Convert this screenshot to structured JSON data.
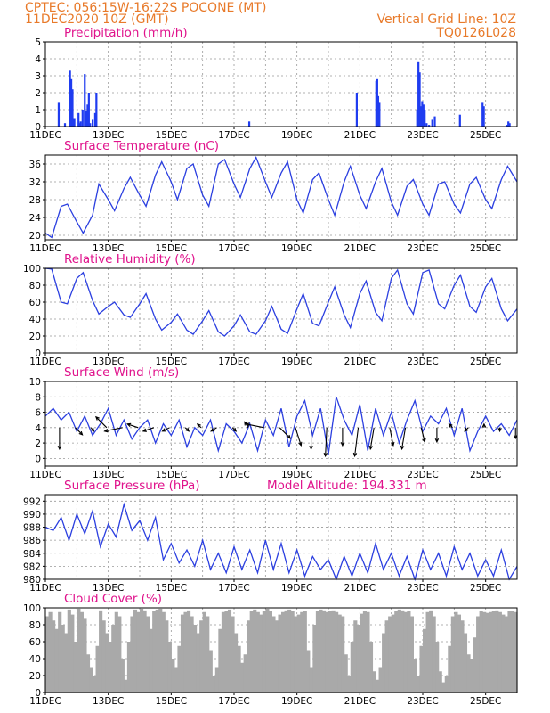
{
  "header": {
    "left_line1": "CPTEC:    056:15W-16:22S   POCONE (MT)",
    "left_line2": "11DEC2020  10Z (GMT)",
    "right_line1": "Vertical Grid Line: 10Z",
    "right_line2": "TQ0126L028"
  },
  "x_labels": [
    "11DEC",
    "13DEC",
    "15DEC",
    "17DEC",
    "19DEC",
    "21DEC",
    "23DEC",
    "25DEC"
  ],
  "x_labels_days": [
    0,
    2,
    4,
    6,
    8,
    10,
    12,
    14
  ],
  "x_range_days": [
    0,
    15
  ],
  "colors": {
    "line": "#2b3fe0",
    "bar": "#1f3cf0",
    "cloud": "#a9a9a9",
    "header": "#e87a2a",
    "title": "#e0138c"
  },
  "chart_data": [
    {
      "type": "bar",
      "title": "Precipitation (mm/h)",
      "ylim": [
        0,
        5
      ],
      "yticks": [
        0,
        1,
        2,
        3,
        4,
        5
      ],
      "x_unit": "days since 11DEC 10Z",
      "x": [
        0.42,
        0.62,
        0.78,
        0.82,
        0.86,
        0.92,
        1.05,
        1.08,
        1.12,
        1.18,
        1.25,
        1.3,
        1.34,
        1.38,
        1.42,
        1.5,
        1.58,
        1.62,
        6.48,
        9.9,
        10.52,
        10.55,
        10.58,
        10.62,
        11.82,
        11.86,
        11.9,
        11.94,
        11.98,
        12.02,
        12.06,
        12.12,
        12.2,
        12.3,
        12.38,
        13.18,
        13.9,
        13.94,
        14.68,
        14.72,
        14.76
      ],
      "values": [
        1.4,
        0.2,
        3.3,
        2.8,
        2.2,
        0.5,
        0.8,
        0.2,
        0.3,
        1.0,
        3.1,
        0.9,
        1.3,
        2.0,
        0.2,
        0.4,
        0.8,
        2.0,
        0.3,
        2.0,
        2.7,
        2.8,
        1.8,
        1.4,
        1.0,
        3.8,
        3.2,
        1.2,
        1.5,
        1.3,
        1.0,
        0.2,
        0.1,
        0.4,
        0.6,
        0.7,
        1.4,
        1.2,
        0.1,
        0.3,
        0.2
      ]
    },
    {
      "type": "line",
      "title": "Surface Temperature (nC)",
      "ylim": [
        19,
        38
      ],
      "yticks": [
        20,
        24,
        28,
        32,
        36
      ],
      "x_unit": "days since 11DEC 10Z",
      "x": [
        0.0,
        0.2,
        0.5,
        0.7,
        1.0,
        1.2,
        1.5,
        1.7,
        2.0,
        2.2,
        2.5,
        2.7,
        3.0,
        3.2,
        3.5,
        3.7,
        4.0,
        4.2,
        4.5,
        4.7,
        5.0,
        5.2,
        5.5,
        5.7,
        6.0,
        6.2,
        6.5,
        6.7,
        7.0,
        7.2,
        7.5,
        7.7,
        8.0,
        8.2,
        8.5,
        8.7,
        9.0,
        9.2,
        9.5,
        9.7,
        10.0,
        10.2,
        10.5,
        10.7,
        11.0,
        11.2,
        11.5,
        11.7,
        12.0,
        12.2,
        12.5,
        12.7,
        13.0,
        13.2,
        13.5,
        13.7,
        14.0,
        14.2,
        14.5,
        14.7,
        15.0
      ],
      "y": [
        20.5,
        19.5,
        26.5,
        27.0,
        23.0,
        20.5,
        24.5,
        31.5,
        28.0,
        25.5,
        30.5,
        33.0,
        29.0,
        26.5,
        33.5,
        36.5,
        32.0,
        28.0,
        35.0,
        36.0,
        29.0,
        26.5,
        36.0,
        37.0,
        31.5,
        28.5,
        35.0,
        37.5,
        32.0,
        28.5,
        34.0,
        36.5,
        28.0,
        25.0,
        32.5,
        34.0,
        28.0,
        24.5,
        32.0,
        35.5,
        29.0,
        26.0,
        32.0,
        35.0,
        27.5,
        24.5,
        31.0,
        32.5,
        27.0,
        24.5,
        31.5,
        32.0,
        27.0,
        25.0,
        31.5,
        33.0,
        28.0,
        26.0,
        32.5,
        35.5,
        32.0
      ]
    },
    {
      "type": "line",
      "title": "Relative Humidity (%)",
      "ylim": [
        0,
        100
      ],
      "yticks": [
        0,
        20,
        40,
        60,
        80,
        100
      ],
      "x_unit": "days since 11DEC 10Z",
      "x": [
        0.0,
        0.2,
        0.5,
        0.7,
        1.0,
        1.2,
        1.5,
        1.7,
        2.0,
        2.2,
        2.5,
        2.7,
        3.0,
        3.2,
        3.5,
        3.7,
        4.0,
        4.2,
        4.5,
        4.7,
        5.0,
        5.2,
        5.5,
        5.7,
        6.0,
        6.2,
        6.5,
        6.7,
        7.0,
        7.2,
        7.5,
        7.7,
        8.0,
        8.2,
        8.5,
        8.7,
        9.0,
        9.2,
        9.5,
        9.7,
        10.0,
        10.2,
        10.5,
        10.7,
        11.0,
        11.2,
        11.5,
        11.7,
        12.0,
        12.2,
        12.5,
        12.7,
        13.0,
        13.2,
        13.5,
        13.7,
        14.0,
        14.2,
        14.5,
        14.7,
        15.0
      ],
      "y": [
        100,
        99,
        60,
        58,
        88,
        95,
        62,
        46,
        55,
        60,
        45,
        42,
        58,
        70,
        40,
        27,
        36,
        46,
        27,
        22,
        38,
        50,
        25,
        20,
        32,
        45,
        25,
        22,
        38,
        55,
        28,
        23,
        52,
        70,
        35,
        32,
        60,
        78,
        45,
        30,
        70,
        85,
        48,
        38,
        88,
        98,
        58,
        46,
        95,
        98,
        58,
        52,
        80,
        92,
        55,
        48,
        78,
        88,
        52,
        38,
        52
      ]
    },
    {
      "type": "line",
      "title": "Surface Wind (m/s)",
      "ylim": [
        -1,
        10
      ],
      "yticks": [
        0,
        2,
        4,
        6,
        8,
        10
      ],
      "x_unit": "days since 11DEC 10Z",
      "x": [
        0.0,
        0.25,
        0.5,
        0.75,
        1.0,
        1.25,
        1.5,
        1.75,
        2.0,
        2.25,
        2.5,
        2.75,
        3.0,
        3.25,
        3.5,
        3.75,
        4.0,
        4.25,
        4.5,
        4.75,
        5.0,
        5.25,
        5.5,
        5.75,
        6.0,
        6.25,
        6.5,
        6.75,
        7.0,
        7.25,
        7.5,
        7.75,
        8.0,
        8.25,
        8.5,
        8.75,
        9.0,
        9.25,
        9.5,
        9.75,
        10.0,
        10.25,
        10.5,
        10.75,
        11.0,
        11.25,
        11.5,
        11.75,
        12.0,
        12.25,
        12.5,
        12.75,
        13.0,
        13.25,
        13.5,
        13.75,
        14.0,
        14.25,
        14.5,
        14.75,
        15.0
      ],
      "y": [
        5.5,
        6.5,
        5.0,
        6.0,
        3.5,
        5.5,
        3.0,
        4.5,
        6.5,
        3.0,
        5.0,
        2.5,
        4.0,
        5.0,
        2.0,
        4.5,
        3.0,
        5.0,
        1.5,
        4.0,
        3.0,
        5.0,
        1.0,
        4.5,
        3.5,
        2.0,
        4.5,
        1.0,
        5.0,
        3.0,
        6.5,
        1.5,
        5.5,
        7.5,
        3.0,
        6.5,
        0.5,
        8.0,
        5.0,
        3.0,
        7.0,
        1.0,
        6.5,
        3.0,
        6.0,
        2.0,
        5.0,
        7.5,
        3.5,
        5.5,
        4.5,
        6.5,
        3.0,
        6.5,
        1.0,
        3.5,
        5.5,
        3.5,
        4.5,
        3.0,
        5.0
      ],
      "vectors": {
        "x": [
          0.45,
          0.95,
          1.45,
          1.95,
          2.45,
          2.95,
          3.45,
          3.95,
          4.45,
          4.95,
          5.45,
          5.95,
          6.45,
          6.95,
          7.45,
          7.95,
          8.45,
          8.95,
          9.45,
          9.95,
          10.45,
          10.95,
          11.45,
          11.95,
          12.45,
          12.95,
          13.45,
          13.95,
          14.45,
          14.95
        ],
        "u": [
          0.0,
          1.0,
          0.4,
          -1.5,
          -2.5,
          -1.5,
          -1.5,
          -1.0,
          0.5,
          -0.5,
          -0.8,
          0.5,
          -0.5,
          -2.5,
          1.5,
          0.8,
          0.0,
          -0.2,
          0.0,
          -0.5,
          -0.5,
          0.5,
          -0.5,
          0.5,
          0.0,
          -0.5,
          -0.5,
          0.0,
          0.0,
          0.0
        ],
        "v": [
          -3.0,
          -1.0,
          -0.5,
          1.5,
          -0.5,
          0.5,
          -0.5,
          -0.5,
          -0.5,
          0.5,
          -0.5,
          -0.5,
          0.8,
          0.5,
          -1.5,
          -2.5,
          -3.0,
          -4.0,
          -2.5,
          -4.0,
          -3.0,
          -2.5,
          -3.0,
          -2.0,
          -2.0,
          0.5,
          -0.5,
          0.5,
          -0.5,
          -1.5
        ]
      }
    },
    {
      "type": "line",
      "title": "Surface Pressure (hPa)",
      "annotation": "Model Altitude: 194.331 m",
      "ylim": [
        980,
        993
      ],
      "yticks": [
        980,
        982,
        984,
        986,
        988,
        990,
        992
      ],
      "x_unit": "days since 11DEC 10Z",
      "x": [
        0.0,
        0.25,
        0.5,
        0.75,
        1.0,
        1.25,
        1.5,
        1.75,
        2.0,
        2.25,
        2.5,
        2.75,
        3.0,
        3.25,
        3.5,
        3.75,
        4.0,
        4.25,
        4.5,
        4.75,
        5.0,
        5.25,
        5.5,
        5.75,
        6.0,
        6.25,
        6.5,
        6.75,
        7.0,
        7.25,
        7.5,
        7.75,
        8.0,
        8.25,
        8.5,
        8.75,
        9.0,
        9.25,
        9.5,
        9.75,
        10.0,
        10.25,
        10.5,
        10.75,
        11.0,
        11.25,
        11.5,
        11.75,
        12.0,
        12.25,
        12.5,
        12.75,
        13.0,
        13.25,
        13.5,
        13.75,
        14.0,
        14.25,
        14.5,
        14.75,
        15.0
      ],
      "y": [
        988.0,
        987.5,
        989.5,
        986.0,
        990.0,
        987.0,
        990.5,
        985.0,
        988.5,
        986.5,
        991.5,
        987.5,
        989.0,
        986.0,
        989.5,
        983.0,
        985.5,
        982.5,
        984.5,
        982.0,
        986.0,
        981.5,
        984.0,
        981.0,
        985.0,
        981.5,
        984.5,
        981.0,
        986.0,
        981.5,
        985.5,
        981.0,
        984.5,
        980.5,
        983.5,
        981.5,
        983.0,
        980.0,
        983.5,
        980.5,
        984.0,
        981.0,
        985.5,
        981.5,
        984.0,
        980.5,
        983.5,
        980.0,
        984.5,
        981.5,
        984.0,
        980.5,
        985.0,
        981.5,
        984.0,
        980.5,
        983.0,
        980.5,
        984.5,
        980.0,
        982.0
      ]
    },
    {
      "type": "bar",
      "title": "Cloud Cover (%)",
      "ylim": [
        0,
        100
      ],
      "yticks": [
        0,
        20,
        40,
        60,
        80,
        100
      ],
      "x_unit": "days since 11DEC 10Z",
      "x": [
        0.0,
        0.1,
        0.2,
        0.3,
        0.4,
        0.5,
        0.6,
        0.7,
        0.8,
        0.9,
        1.0,
        1.1,
        1.2,
        1.3,
        1.4,
        1.5,
        1.6,
        1.7,
        1.8,
        1.9,
        2.0,
        2.1,
        2.2,
        2.3,
        2.4,
        2.5,
        2.6,
        2.7,
        2.8,
        2.9,
        3.0,
        3.1,
        3.2,
        3.3,
        3.4,
        3.5,
        3.6,
        3.7,
        3.8,
        3.9,
        4.0,
        4.1,
        4.2,
        4.3,
        4.4,
        4.5,
        4.6,
        4.7,
        4.8,
        4.9,
        5.0,
        5.1,
        5.2,
        5.3,
        5.4,
        5.5,
        5.6,
        5.7,
        5.8,
        5.9,
        6.0,
        6.1,
        6.2,
        6.3,
        6.4,
        6.5,
        6.6,
        6.7,
        6.8,
        6.9,
        7.0,
        7.1,
        7.2,
        7.3,
        7.4,
        7.5,
        7.6,
        7.7,
        7.8,
        7.9,
        8.0,
        8.1,
        8.2,
        8.3,
        8.4,
        8.5,
        8.6,
        8.7,
        8.8,
        8.9,
        9.0,
        9.1,
        9.2,
        9.3,
        9.4,
        9.5,
        9.6,
        9.7,
        9.8,
        9.9,
        10.0,
        10.1,
        10.2,
        10.3,
        10.4,
        10.5,
        10.6,
        10.7,
        10.8,
        10.9,
        11.0,
        11.1,
        11.2,
        11.3,
        11.4,
        11.5,
        11.6,
        11.7,
        11.8,
        11.9,
        12.0,
        12.1,
        12.2,
        12.3,
        12.4,
        12.5,
        12.6,
        12.7,
        12.8,
        12.9,
        13.0,
        13.1,
        13.2,
        13.3,
        13.4,
        13.5,
        13.6,
        13.7,
        13.8,
        13.9,
        14.0,
        14.1,
        14.2,
        14.3,
        14.4,
        14.5,
        14.6,
        14.7,
        14.8,
        14.9
      ],
      "values": [
        90,
        95,
        85,
        75,
        95,
        80,
        70,
        98,
        92,
        60,
        99,
        95,
        88,
        45,
        30,
        20,
        55,
        97,
        85,
        70,
        60,
        80,
        95,
        90,
        40,
        15,
        60,
        90,
        98,
        95,
        99,
        97,
        90,
        75,
        96,
        98,
        99,
        95,
        85,
        60,
        40,
        30,
        55,
        92,
        95,
        97,
        90,
        80,
        70,
        85,
        95,
        90,
        50,
        20,
        30,
        75,
        95,
        96,
        98,
        90,
        70,
        55,
        35,
        45,
        85,
        96,
        98,
        95,
        92,
        96,
        99,
        96,
        90,
        85,
        92,
        95,
        97,
        98,
        96,
        90,
        92,
        95,
        96,
        50,
        30,
        80,
        96,
        98,
        97,
        95,
        96,
        97,
        95,
        92,
        90,
        45,
        20,
        60,
        85,
        80,
        93,
        96,
        95,
        60,
        25,
        15,
        30,
        70,
        85,
        90,
        92,
        96,
        98,
        97,
        95,
        96,
        90,
        40,
        20,
        55,
        75,
        95,
        97,
        90,
        60,
        25,
        12,
        20,
        55,
        90,
        95,
        92,
        85,
        70,
        45,
        40,
        65,
        90,
        96,
        95,
        94,
        95,
        96,
        97,
        95,
        92,
        90,
        96,
        96,
        95
      ]
    }
  ]
}
